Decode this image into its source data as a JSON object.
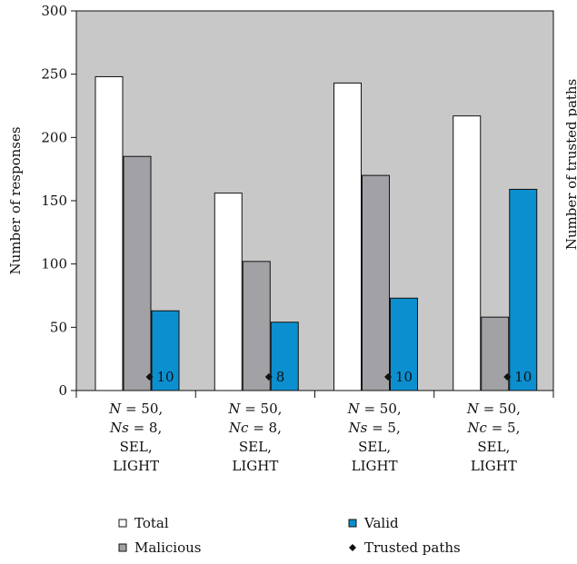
{
  "chart_data": {
    "type": "bar",
    "title": "",
    "xlabel": "",
    "ylabel": "Number of responses",
    "y2label": "Number of trusted paths",
    "ylim": [
      0,
      300
    ],
    "yticks": [
      0,
      50,
      100,
      150,
      200,
      250,
      300
    ],
    "grid": false,
    "background": "#c8c8c8",
    "categories": [
      [
        "N = 50,",
        "Ns = 8,",
        "SEL,",
        "LIGHT"
      ],
      [
        "N = 50,",
        "Nc = 8,",
        "SEL,",
        "LIGHT"
      ],
      [
        "N = 50,",
        "Ns = 5,",
        "SEL,",
        "LIGHT"
      ],
      [
        "N = 50,",
        "Nc = 5,",
        "SEL,",
        "LIGHT"
      ]
    ],
    "series": [
      {
        "name": "Total",
        "kind": "bar",
        "color": "#ffffff",
        "values": [
          248,
          156,
          243,
          217
        ]
      },
      {
        "name": "Malicious",
        "kind": "bar",
        "color": "#a2a2a6",
        "values": [
          185,
          102,
          170,
          58
        ]
      },
      {
        "name": "Valid",
        "kind": "bar",
        "color": "#0b8fcf",
        "values": [
          63,
          54,
          73,
          159
        ]
      },
      {
        "name": "Trusted paths",
        "kind": "marker",
        "color": "#111111",
        "values": [
          10,
          8,
          10,
          10
        ],
        "labels": [
          "10",
          "8",
          "10",
          "10"
        ]
      }
    ],
    "legend_position": "bottom"
  }
}
